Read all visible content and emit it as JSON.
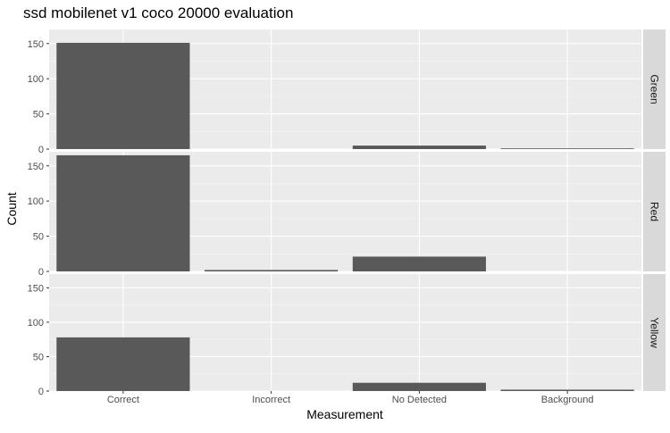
{
  "chart_data": {
    "type": "bar",
    "title": "ssd mobilenet v1 coco 20000 evaluation",
    "xlabel": "Measurement",
    "ylabel": "Count",
    "categories": [
      "Correct",
      "Incorrect",
      "No Detected",
      "Background"
    ],
    "ylim": [
      0,
      170
    ],
    "yticks": [
      0,
      50,
      100,
      150
    ],
    "grid": true,
    "facets": [
      {
        "name": "Green",
        "values": [
          151,
          0,
          5,
          1
        ]
      },
      {
        "name": "Red",
        "values": [
          165,
          2,
          21,
          0
        ]
      },
      {
        "name": "Yellow",
        "values": [
          78,
          0,
          12,
          2
        ]
      }
    ],
    "colors": {
      "bar": "#595959",
      "panel": "#ebebeb",
      "grid_major": "#ffffff",
      "grid_minor": "#f5f5f5",
      "strip": "#d9d9d9",
      "tick": "#333333"
    }
  }
}
